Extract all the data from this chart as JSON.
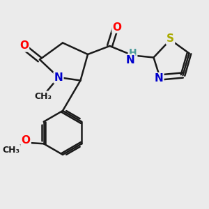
{
  "bg_color": "#ebebeb",
  "bond_color": "#1a1a1a",
  "bond_width": 1.8,
  "dbo": 0.12,
  "atom_colors": {
    "O": "#ff0000",
    "N": "#0000cc",
    "S": "#aaaa00",
    "C": "#1a1a1a",
    "H": "#4a9a9a"
  },
  "fs": 11,
  "fs_s": 9
}
